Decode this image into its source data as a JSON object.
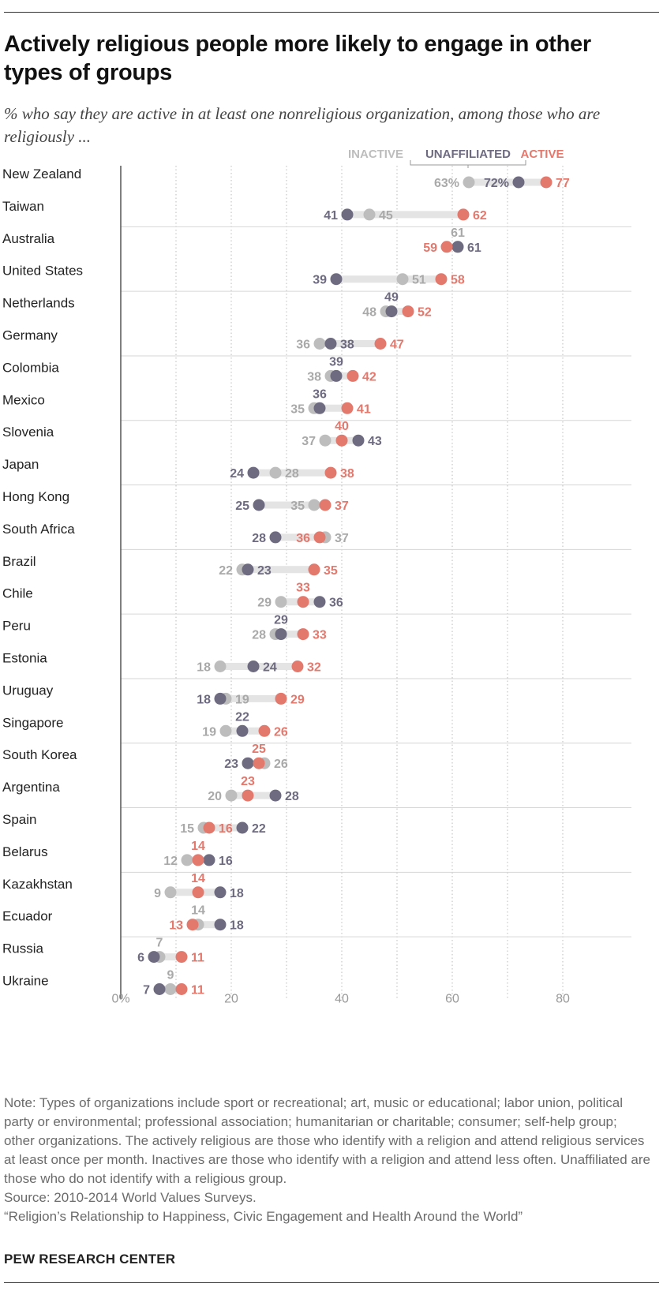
{
  "title": "Actively religious people more likely to engage in other types of groups",
  "subtitle": "% who say they are active in at least one nonreligious organization, among those who are religiously ...",
  "colors": {
    "inactive": "#bdbdbd",
    "unaffiliated": "#6e6a80",
    "active": "#e3786d",
    "connector": "#e4e4e4",
    "grid": "#bbbbbb"
  },
  "chart_data": {
    "type": "dot-plot",
    "x_ticks": [
      "0%",
      "20",
      "40",
      "60",
      "80"
    ],
    "xlim": [
      0,
      80
    ],
    "series_names": [
      "INACTIVE",
      "UNAFFILIATED",
      "ACTIVE"
    ],
    "countries": [
      {
        "name": "New Zealand",
        "inactive": 63,
        "unaffiliated": 72,
        "active": 77,
        "labels": {
          "inactive": "63%",
          "unaffiliated": "72%",
          "active": "77"
        }
      },
      {
        "name": "Taiwan",
        "inactive": 45,
        "unaffiliated": 41,
        "active": 62
      },
      {
        "name": "Australia",
        "inactive": 61,
        "unaffiliated": 61,
        "active": 59
      },
      {
        "name": "United States",
        "inactive": 51,
        "unaffiliated": 39,
        "active": 58
      },
      {
        "name": "Netherlands",
        "inactive": 48,
        "unaffiliated": 49,
        "active": 52
      },
      {
        "name": "Germany",
        "inactive": 36,
        "unaffiliated": 38,
        "active": 47
      },
      {
        "name": "Colombia",
        "inactive": 38,
        "unaffiliated": 39,
        "active": 42
      },
      {
        "name": "Mexico",
        "inactive": 35,
        "unaffiliated": 36,
        "active": 41
      },
      {
        "name": "Slovenia",
        "inactive": 37,
        "unaffiliated": 43,
        "active": 40
      },
      {
        "name": "Japan",
        "inactive": 28,
        "unaffiliated": 24,
        "active": 38
      },
      {
        "name": "Hong Kong",
        "inactive": 35,
        "unaffiliated": 25,
        "active": 37
      },
      {
        "name": "South Africa",
        "inactive": 37,
        "unaffiliated": 28,
        "active": 36
      },
      {
        "name": "Brazil",
        "inactive": 22,
        "unaffiliated": 23,
        "active": 35
      },
      {
        "name": "Chile",
        "inactive": 29,
        "unaffiliated": 36,
        "active": 33
      },
      {
        "name": "Peru",
        "inactive": 28,
        "unaffiliated": 29,
        "active": 33
      },
      {
        "name": "Estonia",
        "inactive": 18,
        "unaffiliated": 24,
        "active": 32
      },
      {
        "name": "Uruguay",
        "inactive": 19,
        "unaffiliated": 18,
        "active": 29
      },
      {
        "name": "Singapore",
        "inactive": 19,
        "unaffiliated": 22,
        "active": 26
      },
      {
        "name": "South Korea",
        "inactive": 26,
        "unaffiliated": 23,
        "active": 25
      },
      {
        "name": "Argentina",
        "inactive": 20,
        "unaffiliated": 28,
        "active": 23
      },
      {
        "name": "Spain",
        "inactive": 15,
        "unaffiliated": 22,
        "active": 16
      },
      {
        "name": "Belarus",
        "inactive": 12,
        "unaffiliated": 16,
        "active": 14
      },
      {
        "name": "Kazakhstan",
        "inactive": 9,
        "unaffiliated": 18,
        "active": 14
      },
      {
        "name": "Ecuador",
        "inactive": 14,
        "unaffiliated": 18,
        "active": 13
      },
      {
        "name": "Russia",
        "inactive": 7,
        "unaffiliated": 6,
        "active": 11
      },
      {
        "name": "Ukraine",
        "inactive": 9,
        "unaffiliated": 7,
        "active": 11
      }
    ]
  },
  "note": "Note: Types of organizations include sport or recreational; art, music or educational; labor union, political party or environmental; professional association; humanitarian or charitable; consumer; self-help group; other organizations. The actively religious are those who identify with a religion and attend religious services at least once per month. Inactives are those who identify with a religion and attend less often. Unaffiliated are those who do not identify with a religious group.",
  "source": "Source: 2010-2014 World Values Surveys.",
  "report": "“Religion’s Relationship to Happiness, Civic Engagement and Health Around the World”",
  "org": "PEW RESEARCH CENTER"
}
